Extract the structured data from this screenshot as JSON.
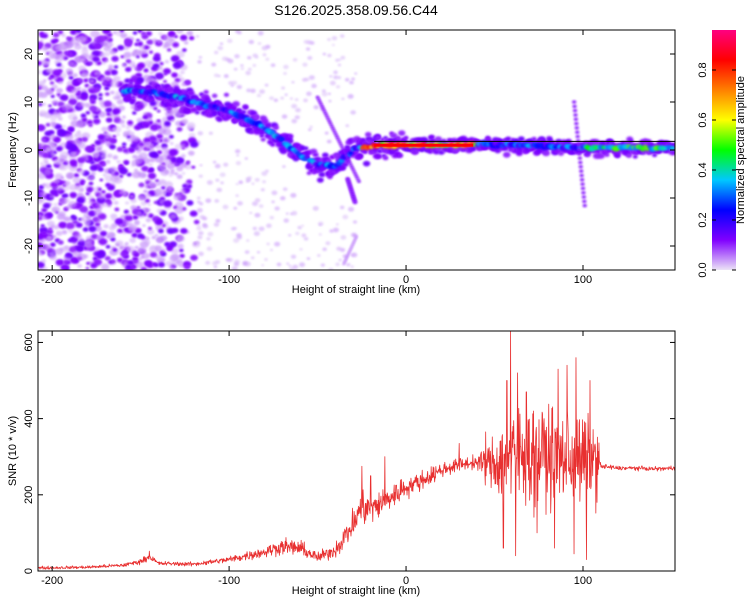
{
  "title": "S126.2025.358.09.56.C44",
  "chart_data": [
    {
      "type": "heatmap",
      "xlabel": "Height of straight line (km)",
      "ylabel": "Frequency (Hz)",
      "xlim": [
        -208,
        152
      ],
      "ylim": [
        -25,
        25
      ],
      "xticks": [
        -200,
        -100,
        0,
        100
      ],
      "yticks": [
        -20,
        -10,
        0,
        10,
        20
      ],
      "grid": false,
      "ridge": {
        "x": [
          -158,
          -150,
          -140,
          -130,
          -120,
          -110,
          -100,
          -90,
          -80,
          -70,
          -60,
          -50,
          -40,
          -35,
          -30,
          -20,
          0,
          20,
          40,
          60,
          80,
          100,
          110,
          130,
          150
        ],
        "freq": [
          12.5,
          12.3,
          11.8,
          11.0,
          10.0,
          9.0,
          8.0,
          6.5,
          4.5,
          2.0,
          -1.0,
          -3.0,
          -3.5,
          -1.5,
          0.0,
          0.8,
          1.0,
          1.0,
          1.2,
          1.0,
          0.8,
          0.5,
          0.5,
          0.5,
          0.5
        ]
      },
      "colorbar": {
        "label": "Normalized spectral amplitude",
        "ticks": [
          "0.0",
          "0.2",
          "0.4",
          "0.6",
          "0.8"
        ],
        "range": [
          0,
          0.96
        ],
        "colors": [
          "#ece4f6",
          "#8000ff",
          "#0000ff",
          "#00c8ff",
          "#00ff00",
          "#ffff00",
          "#ff8000",
          "#ff0000",
          "#ff0080"
        ]
      }
    },
    {
      "type": "line",
      "xlabel": "Height of straight line (km)",
      "ylabel": "SNR (10 * v/v)",
      "xlim": [
        -208,
        152
      ],
      "ylim": [
        0,
        630
      ],
      "xticks": [
        -200,
        -100,
        0,
        100
      ],
      "yticks": [
        0,
        200,
        400,
        600
      ],
      "grid": false,
      "series": [
        {
          "color": "#e83030",
          "x": [
            -208,
            -180,
            -160,
            -150,
            -145,
            -140,
            -120,
            -100,
            -80,
            -70,
            -60,
            -50,
            -40,
            -30,
            -25,
            -20,
            -10,
            0,
            10,
            20,
            30,
            40,
            50,
            60,
            70,
            80,
            90,
            100,
            108,
            110,
            120,
            130,
            140,
            152
          ],
          "y": [
            8,
            10,
            15,
            25,
            38,
            20,
            18,
            30,
            50,
            65,
            60,
            35,
            55,
            120,
            170,
            160,
            190,
            220,
            240,
            265,
            280,
            285,
            280,
            300,
            305,
            300,
            295,
            290,
            295,
            275,
            270,
            270,
            268,
            270
          ],
          "amp": [
            6,
            6,
            7,
            10,
            12,
            8,
            8,
            12,
            22,
            30,
            30,
            20,
            28,
            60,
            70,
            55,
            55,
            40,
            35,
            30,
            25,
            25,
            120,
            200,
            190,
            180,
            180,
            170,
            150,
            12,
            8,
            8,
            8,
            8
          ],
          "peaks": [
            [
              -145,
              52
            ],
            [
              -25,
              275
            ],
            [
              -20,
              250
            ],
            [
              -12,
              300
            ],
            [
              30,
              335
            ],
            [
              45,
              365
            ],
            [
              57,
              500
            ],
            [
              59,
              630
            ],
            [
              63,
              520
            ],
            [
              68,
              470
            ],
            [
              72,
              420
            ],
            [
              78,
              400
            ],
            [
              86,
              530
            ],
            [
              91,
              540
            ],
            [
              96,
              560
            ],
            [
              104,
              500
            ],
            [
              55,
              60
            ],
            [
              62,
              40
            ],
            [
              74,
              100
            ],
            [
              84,
              60
            ],
            [
              95,
              45
            ],
            [
              102,
              30
            ]
          ]
        }
      ]
    }
  ]
}
